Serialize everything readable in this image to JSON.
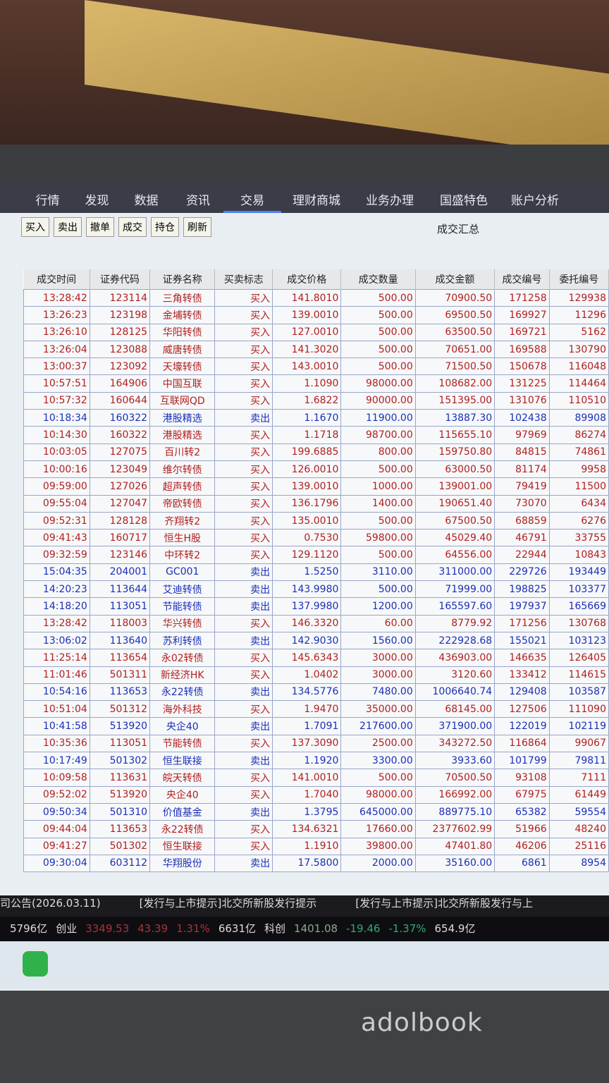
{
  "nav": [
    "行情",
    "发现",
    "数据",
    "资讯",
    "交易",
    "理财商城",
    "业务办理",
    "国盛特色",
    "账户分析"
  ],
  "toolbar": [
    "买入",
    "卖出",
    "撤单",
    "成交",
    "持仓",
    "刷新"
  ],
  "panel_title": "成交汇总",
  "table": {
    "headers": [
      "成交时间",
      "证券代码",
      "证券名称",
      "买卖标志",
      "成交价格",
      "成交数量",
      "成交金额",
      "成交编号",
      "委托编号"
    ],
    "buy_color": "#b02020",
    "sell_color": "#1a2fb8",
    "rows": [
      [
        "13:28:42",
        "123114",
        "三角转债",
        "买入",
        "141.8010",
        "500.00",
        "70900.50",
        "171258",
        "129938"
      ],
      [
        "13:26:23",
        "123198",
        "金埔转债",
        "买入",
        "139.0010",
        "500.00",
        "69500.50",
        "169927",
        "11296"
      ],
      [
        "13:26:10",
        "128125",
        "华阳转债",
        "买入",
        "127.0010",
        "500.00",
        "63500.50",
        "169721",
        "5162"
      ],
      [
        "13:26:04",
        "123088",
        "威唐转债",
        "买入",
        "141.3020",
        "500.00",
        "70651.00",
        "169588",
        "130790"
      ],
      [
        "13:00:37",
        "123092",
        "天壕转债",
        "买入",
        "143.0010",
        "500.00",
        "71500.50",
        "150678",
        "116048"
      ],
      [
        "10:57:51",
        "164906",
        "中国互联",
        "买入",
        "1.1090",
        "98000.00",
        "108682.00",
        "131225",
        "114464"
      ],
      [
        "10:57:32",
        "160644",
        "互联网QD",
        "买入",
        "1.6822",
        "90000.00",
        "151395.00",
        "131076",
        "110510"
      ],
      [
        "10:18:34",
        "160322",
        "港股精选",
        "卖出",
        "1.1670",
        "11900.00",
        "13887.30",
        "102438",
        "89908"
      ],
      [
        "10:14:30",
        "160322",
        "港股精选",
        "买入",
        "1.1718",
        "98700.00",
        "115655.10",
        "97969",
        "86274"
      ],
      [
        "10:03:05",
        "127075",
        "百川转2",
        "买入",
        "199.6885",
        "800.00",
        "159750.80",
        "84815",
        "74861"
      ],
      [
        "10:00:16",
        "123049",
        "维尔转债",
        "买入",
        "126.0010",
        "500.00",
        "63000.50",
        "81174",
        "9958"
      ],
      [
        "09:59:00",
        "127026",
        "超声转债",
        "买入",
        "139.0010",
        "1000.00",
        "139001.00",
        "79419",
        "11500"
      ],
      [
        "09:55:04",
        "127047",
        "帝欧转债",
        "买入",
        "136.1796",
        "1400.00",
        "190651.40",
        "73070",
        "6434"
      ],
      [
        "09:52:31",
        "128128",
        "齐翔转2",
        "买入",
        "135.0010",
        "500.00",
        "67500.50",
        "68859",
        "6276"
      ],
      [
        "09:41:43",
        "160717",
        "恒生H股",
        "买入",
        "0.7530",
        "59800.00",
        "45029.40",
        "46791",
        "33755"
      ],
      [
        "09:32:59",
        "123146",
        "中环转2",
        "买入",
        "129.1120",
        "500.00",
        "64556.00",
        "22944",
        "10843"
      ],
      [
        "15:04:35",
        "204001",
        "GC001",
        "卖出",
        "1.5250",
        "3110.00",
        "311000.00",
        "229726",
        "193449"
      ],
      [
        "14:20:23",
        "113644",
        "艾迪转债",
        "卖出",
        "143.9980",
        "500.00",
        "71999.00",
        "198825",
        "103377"
      ],
      [
        "14:18:20",
        "113051",
        "节能转债",
        "卖出",
        "137.9980",
        "1200.00",
        "165597.60",
        "197937",
        "165669"
      ],
      [
        "13:28:42",
        "118003",
        "华兴转债",
        "买入",
        "146.3320",
        "60.00",
        "8779.92",
        "171256",
        "130768"
      ],
      [
        "13:06:02",
        "113640",
        "苏利转债",
        "卖出",
        "142.9030",
        "1560.00",
        "222928.68",
        "155021",
        "103123"
      ],
      [
        "11:25:14",
        "113654",
        "永02转债",
        "买入",
        "145.6343",
        "3000.00",
        "436903.00",
        "146635",
        "126405"
      ],
      [
        "11:01:46",
        "501311",
        "新经济HK",
        "买入",
        "1.0402",
        "3000.00",
        "3120.60",
        "133412",
        "114615"
      ],
      [
        "10:54:16",
        "113653",
        "永22转债",
        "卖出",
        "134.5776",
        "7480.00",
        "1006640.74",
        "129408",
        "103587"
      ],
      [
        "10:51:04",
        "501312",
        "海外科技",
        "买入",
        "1.9470",
        "35000.00",
        "68145.00",
        "127506",
        "111090"
      ],
      [
        "10:41:58",
        "513920",
        "央企40",
        "卖出",
        "1.7091",
        "217600.00",
        "371900.00",
        "122019",
        "102119"
      ],
      [
        "10:35:36",
        "113051",
        "节能转债",
        "买入",
        "137.3090",
        "2500.00",
        "343272.50",
        "116864",
        "99067"
      ],
      [
        "10:17:49",
        "501302",
        "恒生联接",
        "卖出",
        "1.1920",
        "3300.00",
        "3933.60",
        "101799",
        "79811"
      ],
      [
        "10:09:58",
        "113631",
        "皖天转债",
        "买入",
        "141.0010",
        "500.00",
        "70500.50",
        "93108",
        "7111"
      ],
      [
        "09:52:02",
        "513920",
        "央企40",
        "买入",
        "1.7040",
        "98000.00",
        "166992.00",
        "67975",
        "61449"
      ],
      [
        "09:50:34",
        "501310",
        "价值基金",
        "卖出",
        "1.3795",
        "645000.00",
        "889775.10",
        "65382",
        "59554"
      ],
      [
        "09:44:04",
        "113653",
        "永22转债",
        "买入",
        "134.6321",
        "17660.00",
        "2377602.99",
        "51966",
        "48240"
      ],
      [
        "09:41:27",
        "501302",
        "恒生联接",
        "买入",
        "1.1910",
        "39800.00",
        "47401.80",
        "46206",
        "25116"
      ],
      [
        "09:30:04",
        "603112",
        "华翔股份",
        "卖出",
        "17.5800",
        "2000.00",
        "35160.00",
        "6861",
        "8954"
      ]
    ]
  },
  "ticker": [
    "司公告(2026.03.11)",
    "[发行与上市提示]北交所新股发行提示",
    "[发行与上市提示]北交所新股发行与上"
  ],
  "status": [
    "5796亿",
    "创业",
    "3349.53",
    "43.39",
    "1.31%",
    "6631亿",
    "科创",
    "1401.08",
    "-19.46",
    "-1.37%",
    "654.9亿"
  ],
  "brand": "adolbook"
}
